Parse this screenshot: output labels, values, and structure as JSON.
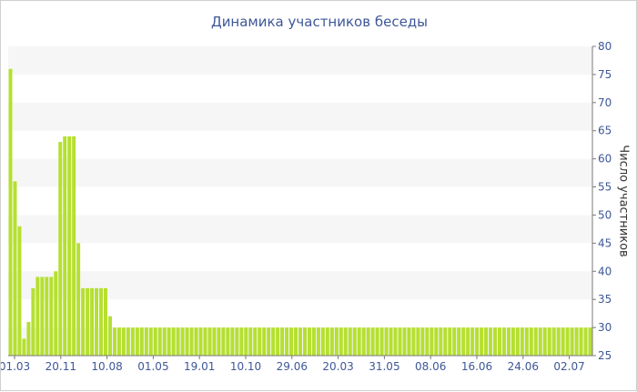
{
  "chart_data": {
    "type": "bar",
    "title": "Динамика участников беседы",
    "ylabel": "Число участников",
    "xlabel": "",
    "ylim": [
      25,
      80
    ],
    "y_ticks": [
      25,
      30,
      35,
      40,
      45,
      50,
      55,
      60,
      65,
      70,
      75,
      80
    ],
    "y_axis_side": "right",
    "x_tick_labels": [
      "01.03",
      "20.11",
      "10.08",
      "01.05",
      "19.01",
      "10.10",
      "29.06",
      "20.03",
      "31.05",
      "08.06",
      "16.06",
      "24.06",
      "02.07"
    ],
    "grid": "alternating horizontal bands",
    "legend": "none",
    "values": [
      76,
      56,
      48,
      28,
      31,
      37,
      39,
      39,
      39,
      39,
      40,
      63,
      64,
      64,
      64,
      45,
      37,
      37,
      37,
      37,
      37,
      37,
      32,
      30,
      30,
      30,
      30,
      30,
      30,
      30,
      30,
      30,
      30,
      30,
      30,
      30,
      30,
      30,
      30,
      30,
      30,
      30,
      30,
      30,
      30,
      30,
      30,
      30,
      30,
      30,
      30,
      30,
      30,
      30,
      30,
      30,
      30,
      30,
      30,
      30,
      30,
      30,
      30,
      30,
      30,
      30,
      30,
      30,
      30,
      30,
      30,
      30,
      30,
      30,
      30,
      30,
      30,
      30,
      30,
      30,
      30,
      30,
      30,
      30,
      30,
      30,
      30,
      30,
      30,
      30,
      30,
      30,
      30,
      30,
      30,
      30,
      30,
      30,
      30,
      30,
      30,
      30,
      30,
      30,
      30,
      30,
      30,
      30,
      30,
      30,
      30,
      30,
      30,
      30,
      30,
      30,
      30,
      30,
      30,
      30,
      30,
      30,
      30,
      30,
      30,
      30,
      30,
      30,
      30
    ],
    "bar_color": "#b5e030",
    "band_color": "#f6f6f6",
    "text_color": "#3e5798"
  }
}
